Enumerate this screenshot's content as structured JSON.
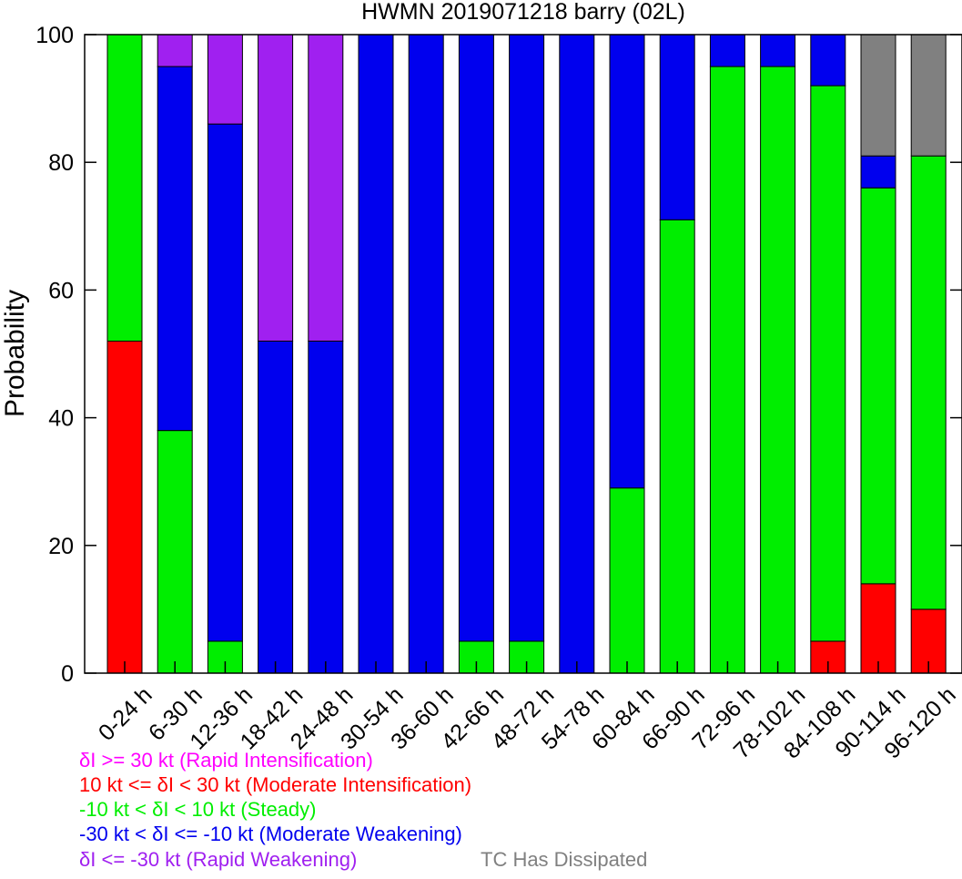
{
  "chart_data": {
    "type": "bar",
    "stacked": true,
    "title": "HWMN 2019071218 barry (02L)",
    "ylabel": "Probability",
    "xlabel": "",
    "ylim": [
      0,
      100
    ],
    "yticks": [
      0,
      20,
      40,
      60,
      80,
      100
    ],
    "grid": false,
    "categories": [
      "0-24 h",
      "6-30 h",
      "12-36 h",
      "18-42 h",
      "24-48 h",
      "30-54 h",
      "36-60 h",
      "42-66 h",
      "48-72 h",
      "54-78 h",
      "60-84 h",
      "66-90 h",
      "72-96 h",
      "78-102 h",
      "84-108 h",
      "90-114 h",
      "96-120 h"
    ],
    "series": [
      {
        "key": "mi",
        "color": "#ff0000",
        "values": [
          52,
          0,
          0,
          0,
          0,
          0,
          0,
          0,
          0,
          0,
          0,
          0,
          0,
          0,
          5,
          14,
          10
        ]
      },
      {
        "key": "steady",
        "color": "#00ee00",
        "values": [
          48,
          38,
          5,
          0,
          0,
          0,
          0,
          5,
          5,
          0,
          29,
          71,
          95,
          95,
          87,
          62,
          71
        ]
      },
      {
        "key": "mw",
        "color": "#0000ee",
        "values": [
          0,
          57,
          81,
          52,
          52,
          100,
          100,
          95,
          95,
          100,
          71,
          29,
          5,
          5,
          8,
          5,
          0
        ]
      },
      {
        "key": "rw",
        "color": "#a020f0",
        "values": [
          0,
          5,
          14,
          48,
          48,
          0,
          0,
          0,
          0,
          0,
          0,
          0,
          0,
          0,
          0,
          0,
          0
        ]
      },
      {
        "key": "dissipated",
        "color": "#808080",
        "values": [
          0,
          0,
          0,
          0,
          0,
          0,
          0,
          0,
          0,
          0,
          0,
          0,
          0,
          0,
          0,
          19,
          19
        ]
      }
    ],
    "legend": [
      {
        "text": "δI >= 30 kt (Rapid Intensification)",
        "color": "#ff00ff"
      },
      {
        "text": "10 kt <= δI < 30 kt (Moderate Intensification)",
        "color": "#ff0000"
      },
      {
        "text": "-10 kt < δI < 10 kt (Steady)",
        "color": "#00ee00"
      },
      {
        "text": "-30 kt < δI <= -10 kt (Moderate Weakening)",
        "color": "#0000ee"
      },
      {
        "text": "δI <= -30 kt (Rapid Weakening)",
        "color": "#a020f0"
      },
      {
        "text": "TC Has Dissipated",
        "color": "#808080"
      }
    ],
    "legend_placement": "bottom-left"
  }
}
